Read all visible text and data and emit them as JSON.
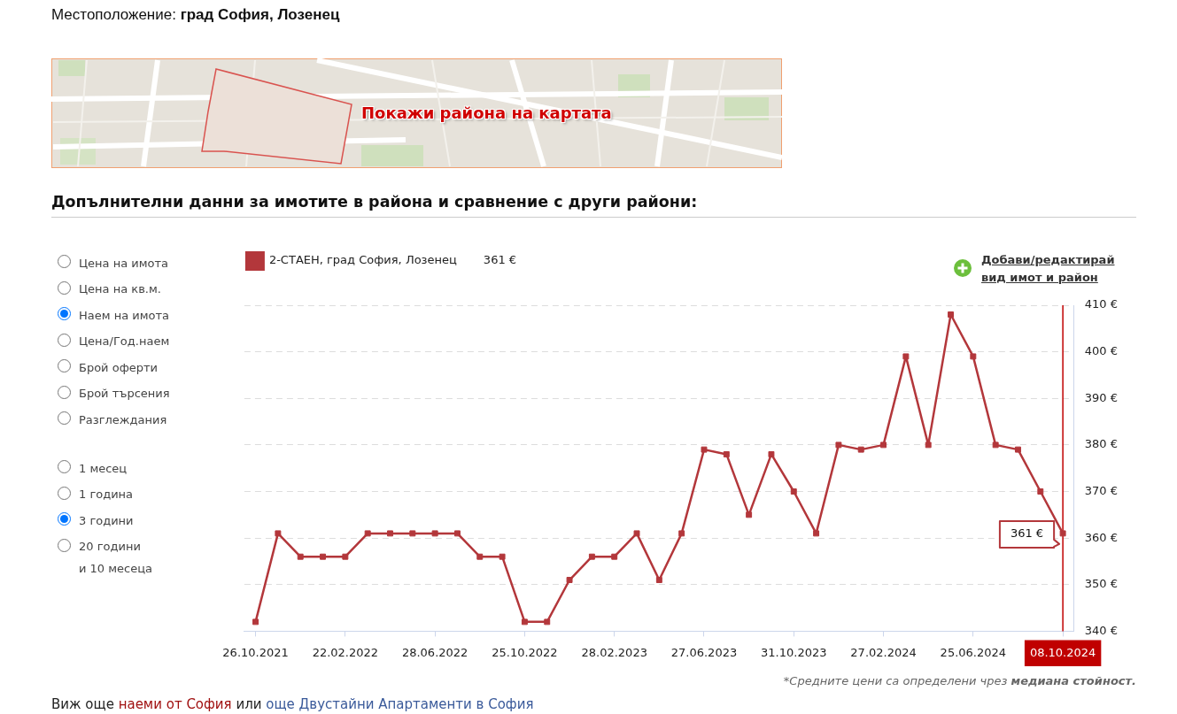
{
  "chart_data": {
    "type": "line",
    "title": "Допълнителни данни за имотите в района и сравнение с други райони:",
    "categories": [
      "26.10.2021",
      null,
      null,
      null,
      "22.02.2022",
      null,
      null,
      null,
      "28.06.2022",
      null,
      null,
      null,
      "25.10.2022",
      null,
      null,
      null,
      "28.02.2023",
      null,
      null,
      null,
      "27.06.2023",
      null,
      null,
      null,
      "31.10.2023",
      null,
      null,
      null,
      "27.02.2024",
      null,
      null,
      null,
      "25.06.2024",
      null,
      null,
      null,
      "08.10.2024"
    ],
    "series": [
      {
        "name": "2-СТАЕН, град София, Лозенец",
        "color": "#b3373b",
        "values": [
          342,
          361,
          356,
          356,
          356,
          361,
          361,
          361,
          361,
          361,
          356,
          356,
          342,
          342,
          351,
          356,
          356,
          361,
          351,
          361,
          379,
          378,
          365,
          378,
          370,
          361,
          380,
          379,
          380,
          399,
          380,
          408,
          399,
          380,
          379,
          370,
          361
        ]
      }
    ],
    "ylim": [
      340,
      410
    ],
    "yticks": [
      {
        "value": 340,
        "label": "340 €"
      },
      {
        "value": 350,
        "label": "350 €"
      },
      {
        "value": 360,
        "label": "360 €"
      },
      {
        "value": 370,
        "label": "370 €"
      },
      {
        "value": 380,
        "label": "380 €"
      },
      {
        "value": 390,
        "label": "390 €"
      },
      {
        "value": 400,
        "label": "400 €"
      },
      {
        "value": 410,
        "label": "410 €"
      }
    ],
    "grid": "y",
    "legend": "top left",
    "marker": "square",
    "ref_lines": [
      {
        "axis": "x",
        "value": "08.10.2024",
        "color": "#c00000"
      }
    ],
    "annotations": [
      "Местоположение:",
      "град София, Лозенец",
      "Покажи района на картата",
      "Цена на имота",
      "Цена на кв.м.",
      "Наем на имота",
      "Цена/Год.наем",
      "Брой оферти",
      "Брой търсения",
      "Разглеждания",
      "1 месец",
      "1 година",
      "3 години",
      "20 години",
      "и 10 месеца",
      "361 €",
      "Добави/редактирай вид имот и район",
      {
        "text": "361 €",
        "x": "08.10.2024",
        "y": 361
      },
      "*Средните цени са определени чрез",
      "медиана стойност.",
      "Виж още",
      "наеми от София",
      "или",
      "още Двустайни Апартаменти в София"
    ]
  }
}
